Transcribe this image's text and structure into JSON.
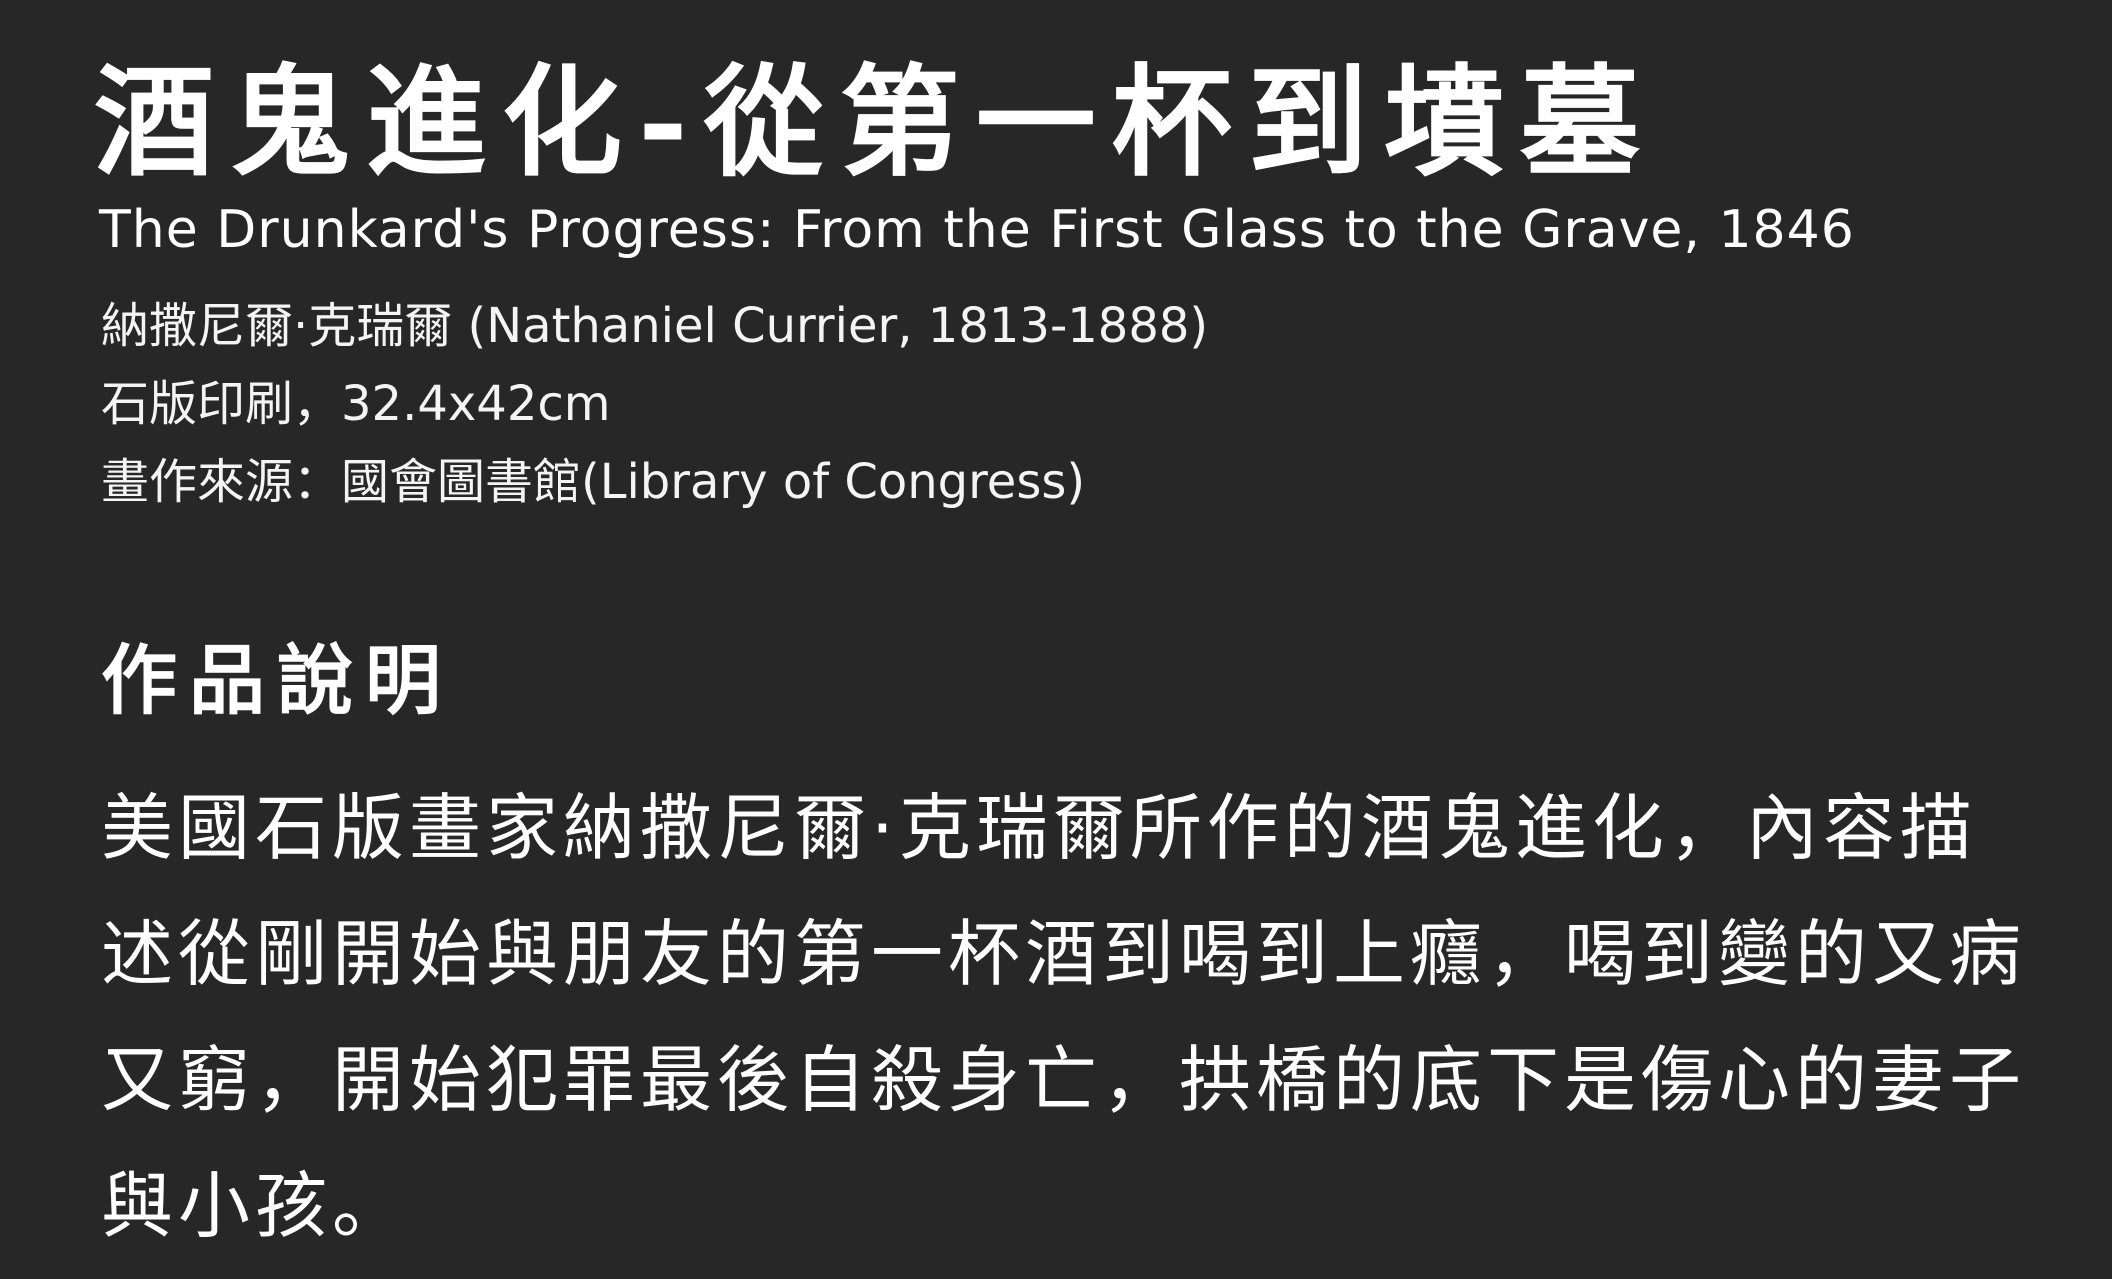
{
  "artwork": {
    "title_zh": "酒鬼進化-從第一杯到墳墓",
    "title_en": "The Drunkard's Progress: From the First Glass to the Grave, 1846",
    "artist": "納撒尼爾·克瑞爾 (Nathaniel Currier, 1813-1888)",
    "medium_size": "石版印刷，32.4x42cm",
    "source": "畫作來源：國會圖書館(Library of Congress)"
  },
  "description": {
    "heading": "作品說明",
    "text": "美國石版畫家納撒尼爾·克瑞爾所作的酒鬼進化，內容描述從剛開始與朋友的第一杯酒到喝到上癮，喝到變的又病又窮，開始犯罪最後自殺身亡，拱橋的底下是傷心的妻子與小孩。"
  }
}
